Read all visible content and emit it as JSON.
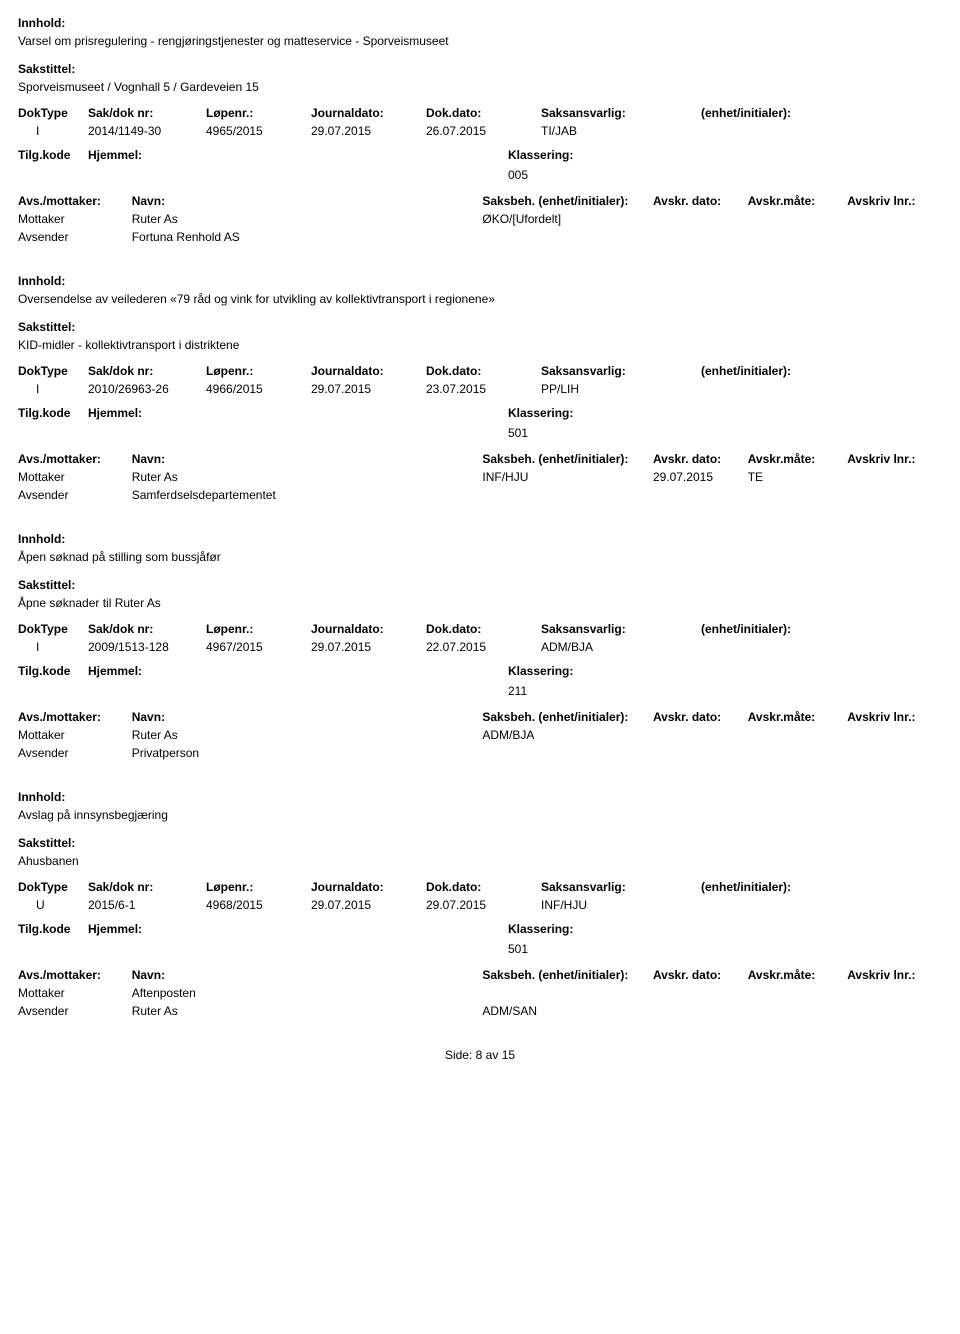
{
  "labels": {
    "innhold": "Innhold:",
    "sakstittel": "Sakstittel:",
    "doktype": "DokType",
    "sakdok": "Sak/dok nr:",
    "lopen": "Løpenr.:",
    "jdato": "Journaldato:",
    "ddato": "Dok.dato:",
    "ansv": "Saksansvarlig:",
    "enhet": "(enhet/initialer):",
    "tilg": "Tilg.kode",
    "hjemmel": "Hjemmel:",
    "klass": "Klassering:",
    "avsmot": "Avs./mottaker:",
    "navn": "Navn:",
    "saksbeh": "Saksbeh.",
    "saksbeh_enhet": "(enhet/initialer):",
    "avskr_dato": "Avskr. dato:",
    "avskr_mate": "Avskr.måte:",
    "avskriv_lnr": "Avskriv lnr.:",
    "mottaker": "Mottaker",
    "avsender": "Avsender"
  },
  "records": [
    {
      "innhold": "Varsel om prisregulering - rengjøringstjenester og matteservice - Sporveismuseet",
      "sakstittel": "Sporveismuseet / Vognhall 5 / Gardeveien 15",
      "doktype": "I",
      "sakdok": "2014/1149-30",
      "lopen": "4965/2015",
      "jdato": "29.07.2015",
      "ddato": "26.07.2015",
      "ansv": "TI/JAB",
      "enhet": "",
      "klass": "005",
      "parties": [
        {
          "role": "Mottaker",
          "name": "Ruter As",
          "saksbeh": "ØKO/[Ufordelt]",
          "avskr_dato": "",
          "avskr_mate": "",
          "avskriv_lnr": ""
        },
        {
          "role": "Avsender",
          "name": "Fortuna Renhold AS",
          "saksbeh": "",
          "avskr_dato": "",
          "avskr_mate": "",
          "avskriv_lnr": ""
        }
      ]
    },
    {
      "innhold": "Oversendelse av veilederen «79 råd og vink for utvikling av kollektivtransport i regionene»",
      "sakstittel": "KID-midler - kollektivtransport i distriktene",
      "doktype": "I",
      "sakdok": "2010/26963-26",
      "lopen": "4966/2015",
      "jdato": "29.07.2015",
      "ddato": "23.07.2015",
      "ansv": "PP/LIH",
      "enhet": "",
      "klass": "501",
      "parties": [
        {
          "role": "Mottaker",
          "name": "Ruter As",
          "saksbeh": "INF/HJU",
          "avskr_dato": "29.07.2015",
          "avskr_mate": "TE",
          "avskriv_lnr": ""
        },
        {
          "role": "Avsender",
          "name": "Samferdselsdepartementet",
          "saksbeh": "",
          "avskr_dato": "",
          "avskr_mate": "",
          "avskriv_lnr": ""
        }
      ]
    },
    {
      "innhold": "Åpen søknad på stilling som bussjåfør",
      "sakstittel": "Åpne søknader til Ruter As",
      "doktype": "I",
      "sakdok": "2009/1513-128",
      "lopen": "4967/2015",
      "jdato": "29.07.2015",
      "ddato": "22.07.2015",
      "ansv": "ADM/BJA",
      "enhet": "",
      "klass": "211",
      "parties": [
        {
          "role": "Mottaker",
          "name": "Ruter As",
          "saksbeh": "ADM/BJA",
          "avskr_dato": "",
          "avskr_mate": "",
          "avskriv_lnr": ""
        },
        {
          "role": "Avsender",
          "name": "Privatperson",
          "saksbeh": "",
          "avskr_dato": "",
          "avskr_mate": "",
          "avskriv_lnr": ""
        }
      ]
    },
    {
      "innhold": "Avslag på innsynsbegjæring",
      "sakstittel": "Ahusbanen",
      "doktype": "U",
      "sakdok": "2015/6-1",
      "lopen": "4968/2015",
      "jdato": "29.07.2015",
      "ddato": "29.07.2015",
      "ansv": "INF/HJU",
      "enhet": "",
      "klass": "501",
      "parties": [
        {
          "role": "Mottaker",
          "name": "Aftenposten",
          "saksbeh": "",
          "avskr_dato": "",
          "avskr_mate": "",
          "avskriv_lnr": ""
        },
        {
          "role": "Avsender",
          "name": "Ruter As",
          "saksbeh": "ADM/SAN",
          "avskr_dato": "",
          "avskr_mate": "",
          "avskriv_lnr": ""
        }
      ]
    }
  ],
  "footer": {
    "side": "Side:",
    "page": "8",
    "av": "av",
    "total": "15"
  }
}
